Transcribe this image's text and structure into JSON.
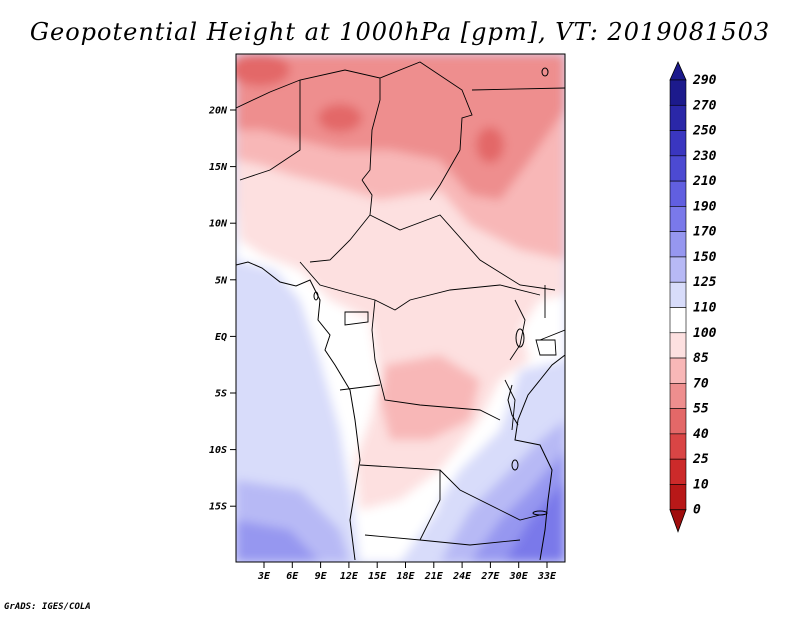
{
  "title": "Geopotential Height at 1000hPa [gpm], VT: 2019081503",
  "credit": "GrADS: IGES/COLA",
  "map": {
    "lat_ticks": [
      "20N",
      "15N",
      "10N",
      "5N",
      "EQ",
      "5S",
      "10S",
      "15S"
    ],
    "lon_ticks": [
      "3E",
      "6E",
      "9E",
      "12E",
      "15E",
      "18E",
      "21E",
      "24E",
      "27E",
      "30E",
      "33E"
    ]
  },
  "colorbar": {
    "labels": [
      "290",
      "270",
      "250",
      "230",
      "210",
      "190",
      "170",
      "150",
      "125",
      "110",
      "100",
      "85",
      "70",
      "55",
      "40",
      "25",
      "10",
      "0"
    ],
    "colors_top_to_bottom": [
      "#1c1a8c",
      "#2a27a8",
      "#3a36c0",
      "#4c4ad2",
      "#615fe0",
      "#7a79ea",
      "#9697f0",
      "#b7b9f5",
      "#d8dcfa",
      "#ffffff",
      "#fde0e0",
      "#f8b7b7",
      "#ee8e8e",
      "#e36868",
      "#d94545",
      "#cc2a2a",
      "#b81818",
      "#a00d0d"
    ]
  }
}
